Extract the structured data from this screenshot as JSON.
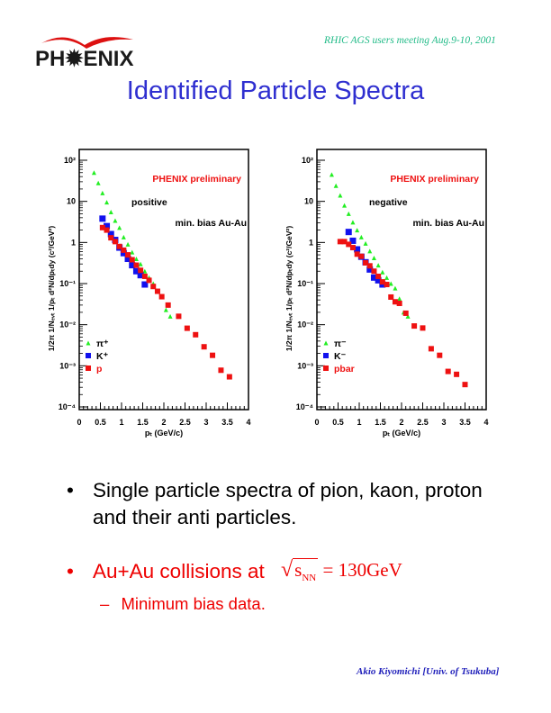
{
  "header": {
    "logo_text": "PH✹ENIX",
    "meeting": "RHIC AGS  users meeting   Aug.9-10, 2001",
    "title": "Identified Particle Spectra"
  },
  "colors": {
    "pion": "#22ee22",
    "kaon": "#1111ee",
    "proton": "#ee1111",
    "title": "#2f2fd0",
    "meeting": "#22bb88",
    "footer": "#2222bb"
  },
  "chart_data": [
    {
      "type": "scatter",
      "title": "",
      "annotations": [
        "PHENIX preliminary",
        "positive",
        "min. bias Au-Au"
      ],
      "xlabel": "pₜ (GeV/c)",
      "ylabel": "1/2π 1/Nₑᵥₜ 1/pₜ d²N/dpₜdy (c²/GeV²)",
      "xlim": [
        0,
        4
      ],
      "ylim": [
        0.0001,
        100
      ],
      "yscale": "log",
      "xticks": [
        "0",
        "0.5",
        "1",
        "1.5",
        "2",
        "2.5",
        "3",
        "3.5",
        "4"
      ],
      "yticks": [
        "10⁻⁴",
        "10⁻³",
        "10⁻²",
        "10⁻¹",
        "1",
        "10",
        "10²"
      ],
      "legend_position": "bottom-left",
      "series": [
        {
          "name": "π⁺",
          "marker": "triangle",
          "color": "#22ee22",
          "x": [
            0.35,
            0.45,
            0.55,
            0.65,
            0.75,
            0.85,
            0.95,
            1.05,
            1.15,
            1.25,
            1.35,
            1.45,
            1.55,
            1.65,
            1.75,
            2.05,
            2.15
          ],
          "y": [
            50,
            28,
            16,
            9.5,
            5.5,
            3.4,
            2.3,
            1.35,
            0.9,
            0.58,
            0.4,
            0.3,
            0.2,
            0.14,
            0.1,
            0.023,
            0.016
          ]
        },
        {
          "name": "K⁺",
          "marker": "square",
          "color": "#1111ee",
          "x": [
            0.55,
            0.65,
            0.75,
            0.85,
            0.95,
            1.05,
            1.15,
            1.25,
            1.35,
            1.45,
            1.55
          ],
          "y": [
            3.8,
            2.5,
            1.6,
            1.15,
            0.75,
            0.55,
            0.4,
            0.28,
            0.2,
            0.16,
            0.095
          ]
        },
        {
          "name": "p",
          "marker": "square",
          "color": "#ee1111",
          "x": [
            0.55,
            0.65,
            0.75,
            0.85,
            0.95,
            1.05,
            1.15,
            1.25,
            1.35,
            1.45,
            1.55,
            1.65,
            1.75,
            1.85,
            1.95,
            2.1,
            2.35,
            2.55,
            2.75,
            2.95,
            3.15,
            3.35,
            3.55
          ],
          "y": [
            2.3,
            2.0,
            1.3,
            1.05,
            0.8,
            0.65,
            0.5,
            0.38,
            0.28,
            0.21,
            0.15,
            0.12,
            0.085,
            0.065,
            0.048,
            0.03,
            0.016,
            0.0082,
            0.0057,
            0.0029,
            0.0018,
            0.00078,
            0.00054
          ]
        }
      ]
    },
    {
      "type": "scatter",
      "title": "",
      "annotations": [
        "PHENIX preliminary",
        "negative",
        "min. bias Au-Au"
      ],
      "xlabel": "pₜ (GeV/c)",
      "ylabel": "1/2π 1/Nₑᵥₜ 1/pₜ d²N/dpₜdy (c²/GeV²)",
      "xlim": [
        0,
        4
      ],
      "ylim": [
        0.0001,
        100
      ],
      "yscale": "log",
      "xticks": [
        "0",
        "0.5",
        "1",
        "1.5",
        "2",
        "2.5",
        "3",
        "3.5",
        "4"
      ],
      "yticks": [
        "10⁻⁴",
        "10⁻³",
        "10⁻²",
        "10⁻¹",
        "1",
        "10",
        "10²"
      ],
      "legend_position": "bottom-left",
      "series": [
        {
          "name": "π⁻",
          "marker": "triangle",
          "color": "#22ee22",
          "x": [
            0.35,
            0.45,
            0.55,
            0.65,
            0.75,
            0.85,
            0.95,
            1.05,
            1.15,
            1.25,
            1.35,
            1.45,
            1.55,
            1.65,
            1.75,
            1.85,
            1.95,
            2.05,
            2.15
          ],
          "y": [
            45,
            24,
            14,
            8,
            5,
            3.1,
            2,
            1.35,
            0.95,
            0.62,
            0.42,
            0.28,
            0.19,
            0.14,
            0.1,
            0.077,
            0.043,
            0.02,
            0.016
          ]
        },
        {
          "name": "K⁻",
          "marker": "square",
          "color": "#1111ee",
          "x": [
            0.75,
            0.85,
            0.95,
            1.05,
            1.15,
            1.25,
            1.35,
            1.45,
            1.55
          ],
          "y": [
            1.8,
            1.1,
            0.68,
            0.45,
            0.33,
            0.22,
            0.14,
            0.12,
            0.095
          ]
        },
        {
          "name": "pbar",
          "marker": "square",
          "color": "#ee1111",
          "x": [
            0.55,
            0.65,
            0.75,
            0.85,
            0.95,
            1.05,
            1.15,
            1.25,
            1.35,
            1.45,
            1.55,
            1.65,
            1.75,
            1.85,
            1.95,
            2.1,
            2.3,
            2.5,
            2.7,
            2.9,
            3.1,
            3.3,
            3.5
          ],
          "y": [
            1.05,
            1.05,
            0.9,
            0.75,
            0.52,
            0.46,
            0.32,
            0.27,
            0.2,
            0.15,
            0.11,
            0.095,
            0.047,
            0.036,
            0.033,
            0.019,
            0.0093,
            0.0083,
            0.0026,
            0.0018,
            0.00073,
            0.00062,
            0.00035
          ]
        }
      ]
    }
  ],
  "bullets": [
    {
      "text": "Single particle spectra of pion, kaon, proton and their anti particles."
    },
    {
      "text": "Au+Au collisions at",
      "formula": "√sₙₙ = 130GeV",
      "formula_root": "√",
      "formula_s": "s",
      "formula_sub": "NN",
      "formula_rest": "= 130GeV"
    }
  ],
  "sub_bullet": {
    "dash": "–",
    "text": "Minimum bias data."
  },
  "bullet_glyph": "•",
  "footer": "Akio Kiyomichi [Univ. of Tsukuba]"
}
